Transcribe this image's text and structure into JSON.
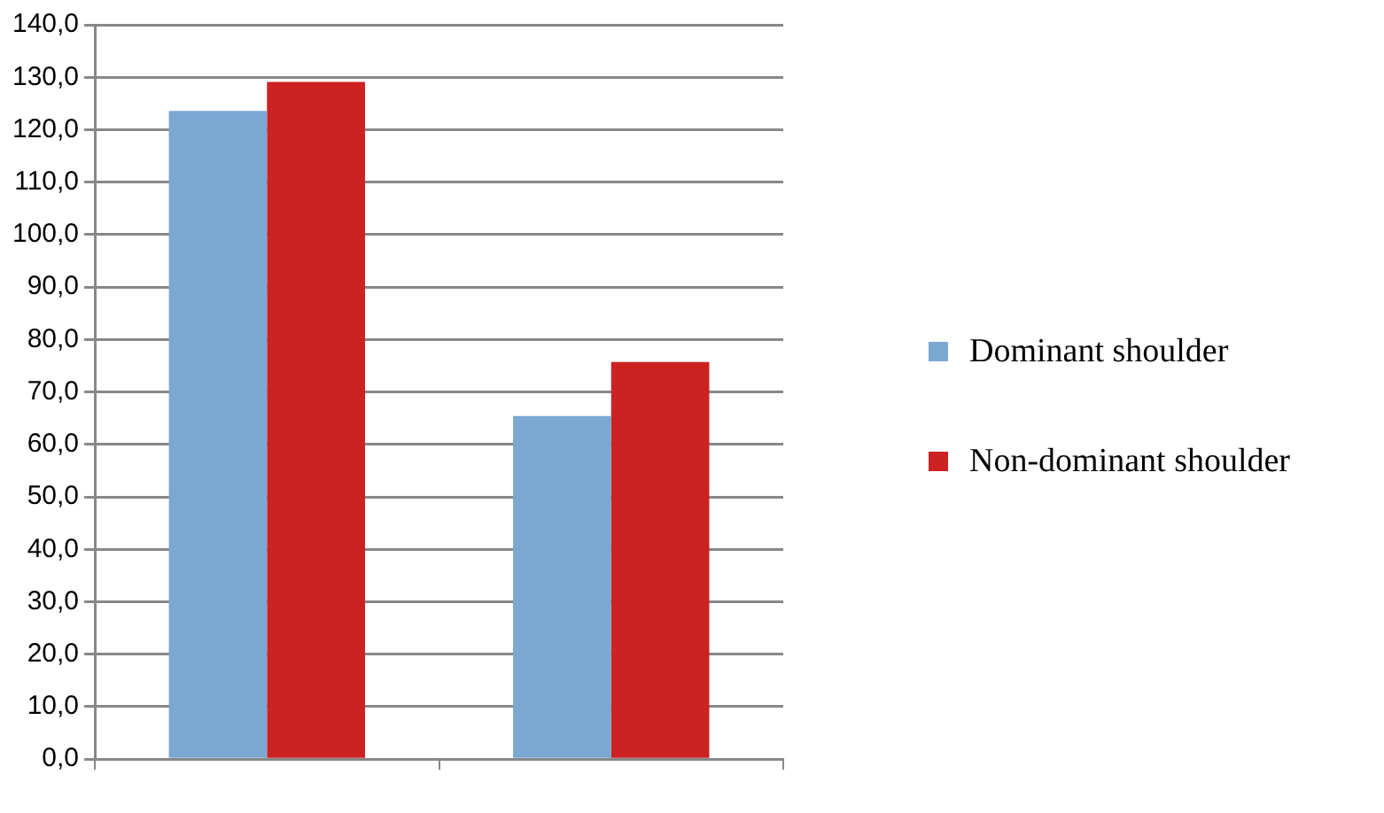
{
  "chart_data": {
    "type": "bar",
    "categories": [
      null,
      null
    ],
    "series": [
      {
        "name": "Dominant shoulder",
        "color": "#7ba7d3",
        "values": [
          123.6,
          65.4
        ]
      },
      {
        "name": "Non-dominant shoulder",
        "color": "#cc2222",
        "values": [
          129.1,
          75.7
        ]
      }
    ],
    "ylim": [
      0,
      140
    ],
    "yticks": [
      {
        "value": 0,
        "label": "0,0"
      },
      {
        "value": 10,
        "label": "10,0"
      },
      {
        "value": 20,
        "label": "20,0"
      },
      {
        "value": 30,
        "label": "30,0"
      },
      {
        "value": 40,
        "label": "40,0"
      },
      {
        "value": 50,
        "label": "50,0"
      },
      {
        "value": 60,
        "label": "60,0"
      },
      {
        "value": 70,
        "label": "70,0"
      },
      {
        "value": 80,
        "label": "80,0"
      },
      {
        "value": 90,
        "label": "90,0"
      },
      {
        "value": 100,
        "label": "100,0"
      },
      {
        "value": 110,
        "label": "110,0"
      },
      {
        "value": 120,
        "label": "120,0"
      },
      {
        "value": 130,
        "label": "130,0"
      },
      {
        "value": 140,
        "label": "140,0"
      }
    ],
    "grid": "y",
    "legend": "right"
  }
}
